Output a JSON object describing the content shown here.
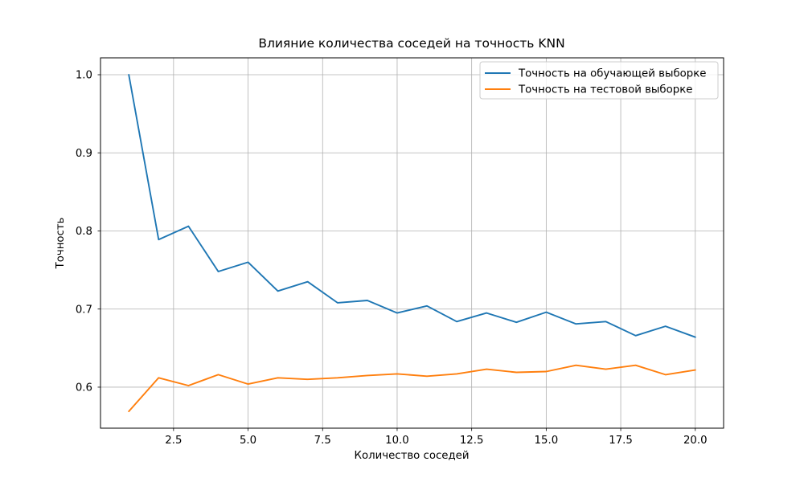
{
  "chart_data": {
    "type": "line",
    "title": "Влияние количества соседей на точность KNN",
    "xlabel": "Количество соседей",
    "ylabel": "Точность",
    "x": [
      1,
      2,
      3,
      4,
      5,
      6,
      7,
      8,
      9,
      10,
      11,
      12,
      13,
      14,
      15,
      16,
      17,
      18,
      19,
      20
    ],
    "series": [
      {
        "name": "Точность на обучающей выборке",
        "color": "#1f77b4",
        "values": [
          1.0,
          0.789,
          0.806,
          0.748,
          0.76,
          0.723,
          0.735,
          0.708,
          0.711,
          0.695,
          0.704,
          0.684,
          0.695,
          0.683,
          0.696,
          0.681,
          0.684,
          0.666,
          0.678,
          0.664
        ]
      },
      {
        "name": "Точность на тестовой выборке",
        "color": "#ff7f0e",
        "values": [
          0.569,
          0.612,
          0.602,
          0.616,
          0.604,
          0.612,
          0.61,
          0.612,
          0.615,
          0.617,
          0.614,
          0.617,
          0.623,
          0.619,
          0.62,
          0.628,
          0.623,
          0.628,
          0.616,
          0.622
        ]
      }
    ],
    "xlim": [
      0.05,
      20.95
    ],
    "ylim": [
      0.5475,
      1.0216
    ],
    "xticks": {
      "values": [
        2.5,
        5.0,
        7.5,
        10.0,
        12.5,
        15.0,
        17.5,
        20.0
      ],
      "labels": [
        "2.5",
        "5.0",
        "7.5",
        "10.0",
        "12.5",
        "15.0",
        "17.5",
        "20.0"
      ]
    },
    "yticks": {
      "values": [
        0.6,
        0.7,
        0.8,
        0.9,
        1.0
      ],
      "labels": [
        "0.6",
        "0.7",
        "0.8",
        "0.9",
        "1.0"
      ]
    },
    "grid": true,
    "legend_position": "upper right",
    "colors": {
      "grid": "#b0b0b0",
      "axes_border": "#000000",
      "background": "#ffffff",
      "legend_border": "#cccccc",
      "legend_background": "#ffffff"
    }
  }
}
